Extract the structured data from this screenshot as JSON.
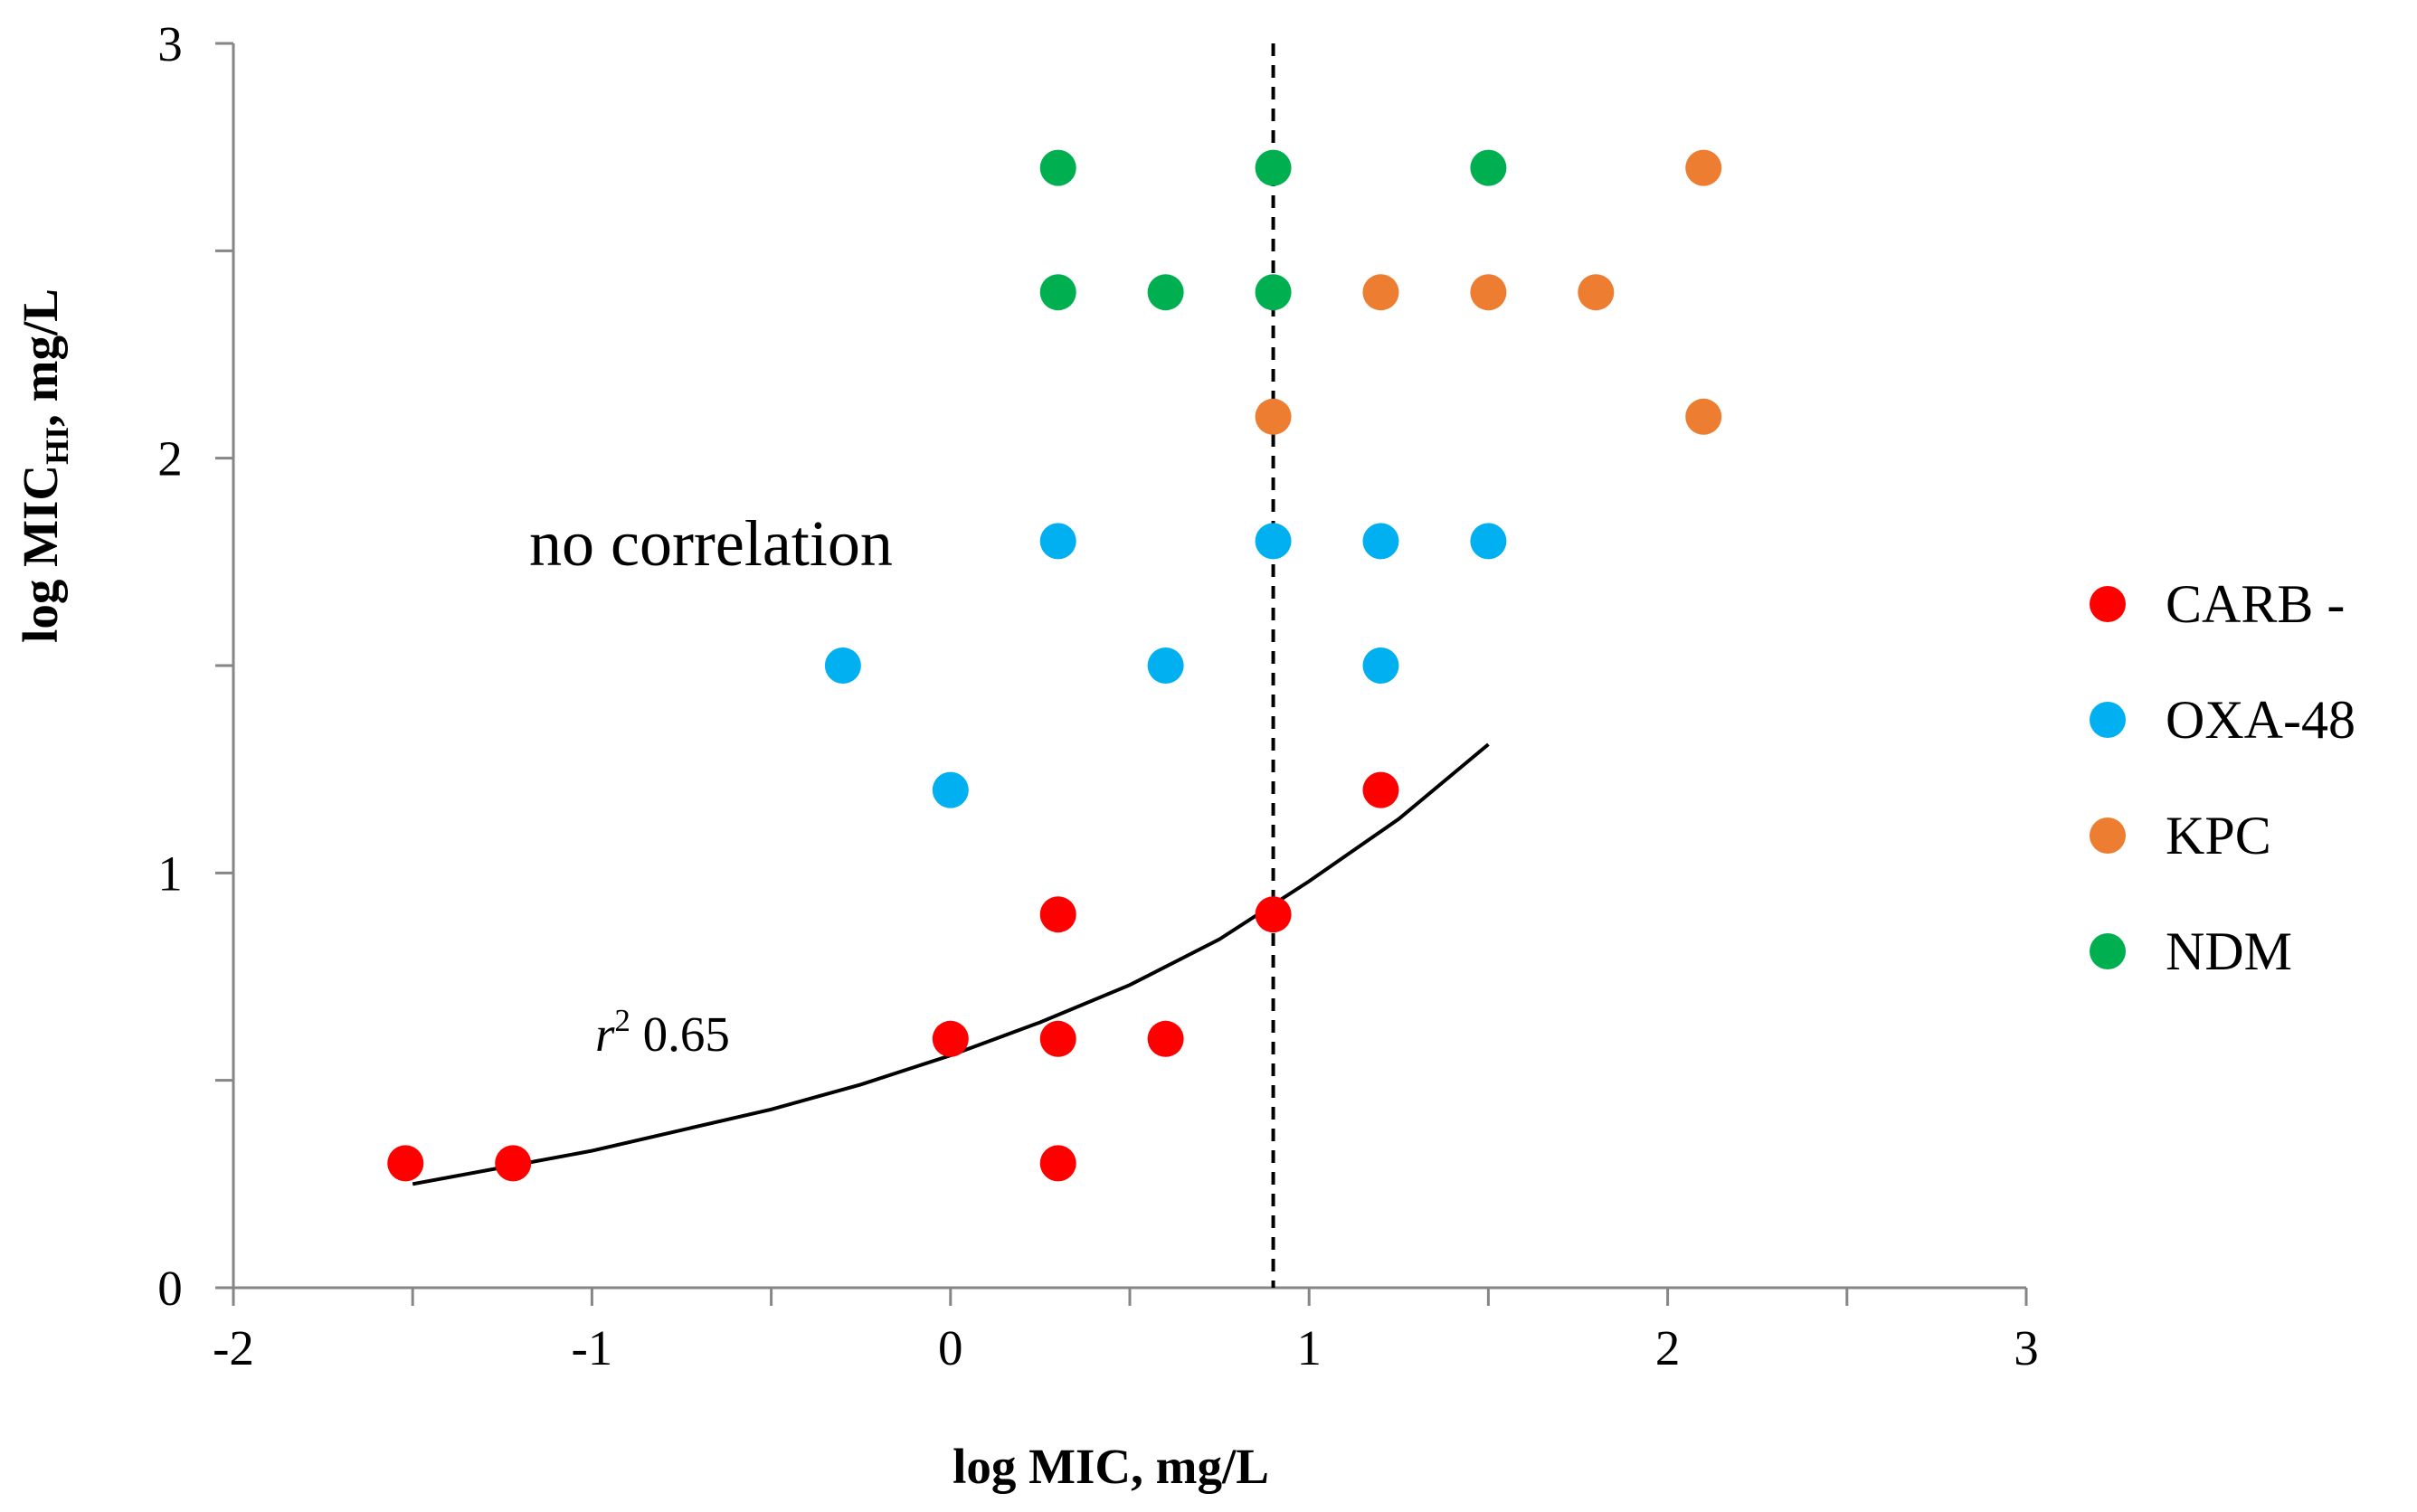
{
  "chart_data": {
    "type": "scatter",
    "title": "",
    "xlabel": "log MIC, mg/L",
    "ylabel_main": "log MIC",
    "ylabel_sub": "HI",
    "ylabel_tail": ", mg/L",
    "xlim": [
      -2,
      3
    ],
    "ylim": [
      0,
      3
    ],
    "xticks": [
      -2,
      -1,
      0,
      1,
      2,
      3
    ],
    "xtick_labels": [
      "-2",
      "-1",
      "0",
      "1",
      "2",
      "3"
    ],
    "yticks": [
      0,
      1,
      2,
      3
    ],
    "ytick_labels": [
      "0",
      "1",
      "2",
      "3"
    ],
    "grid": false,
    "legend_position": "right",
    "series": [
      {
        "name": "CARB -",
        "color": "#ff0000",
        "points": [
          {
            "x": -1.52,
            "y": 0.3
          },
          {
            "x": -1.22,
            "y": 0.3
          },
          {
            "x": 0.0,
            "y": 0.6
          },
          {
            "x": 0.3,
            "y": 0.6
          },
          {
            "x": 0.6,
            "y": 0.6
          },
          {
            "x": 0.3,
            "y": 0.9
          },
          {
            "x": 0.3,
            "y": 0.3
          },
          {
            "x": 0.9,
            "y": 0.9
          },
          {
            "x": 1.2,
            "y": 1.2
          }
        ]
      },
      {
        "name": "OXA-48",
        "color": "#00b0f0",
        "points": [
          {
            "x": -0.3,
            "y": 1.5
          },
          {
            "x": 0.0,
            "y": 1.2
          },
          {
            "x": 0.3,
            "y": 1.8
          },
          {
            "x": 0.6,
            "y": 1.5
          },
          {
            "x": 0.9,
            "y": 1.8
          },
          {
            "x": 1.2,
            "y": 1.8
          },
          {
            "x": 1.2,
            "y": 1.5
          },
          {
            "x": 1.5,
            "y": 1.8
          }
        ]
      },
      {
        "name": "KPC",
        "color": "#ed7d31",
        "points": [
          {
            "x": 0.9,
            "y": 2.1
          },
          {
            "x": 1.2,
            "y": 2.4
          },
          {
            "x": 1.5,
            "y": 2.4
          },
          {
            "x": 1.8,
            "y": 2.4
          },
          {
            "x": 2.1,
            "y": 2.7
          },
          {
            "x": 2.1,
            "y": 2.1
          }
        ]
      },
      {
        "name": "NDM",
        "color": "#00b050",
        "points": [
          {
            "x": 0.3,
            "y": 2.7
          },
          {
            "x": 0.9,
            "y": 2.7
          },
          {
            "x": 1.5,
            "y": 2.7
          },
          {
            "x": 0.3,
            "y": 2.4
          },
          {
            "x": 0.6,
            "y": 2.4
          },
          {
            "x": 0.9,
            "y": 2.4
          }
        ]
      }
    ],
    "trendline": {
      "label_r": "r",
      "label_exp": "2",
      "label_value": " 0.65",
      "points": [
        {
          "x": -1.5,
          "y": 0.25
        },
        {
          "x": -1.25,
          "y": 0.29
        },
        {
          "x": -1.0,
          "y": 0.33
        },
        {
          "x": -0.75,
          "y": 0.38
        },
        {
          "x": -0.5,
          "y": 0.43
        },
        {
          "x": -0.25,
          "y": 0.49
        },
        {
          "x": 0.0,
          "y": 0.56
        },
        {
          "x": 0.25,
          "y": 0.64
        },
        {
          "x": 0.5,
          "y": 0.73
        },
        {
          "x": 0.75,
          "y": 0.84
        },
        {
          "x": 1.0,
          "y": 0.98
        },
        {
          "x": 1.25,
          "y": 1.13
        },
        {
          "x": 1.5,
          "y": 1.31
        }
      ]
    },
    "vertical_line": {
      "x": 0.9,
      "style": "dashed"
    },
    "annotations": {
      "no_correlation": "no correlation"
    }
  }
}
